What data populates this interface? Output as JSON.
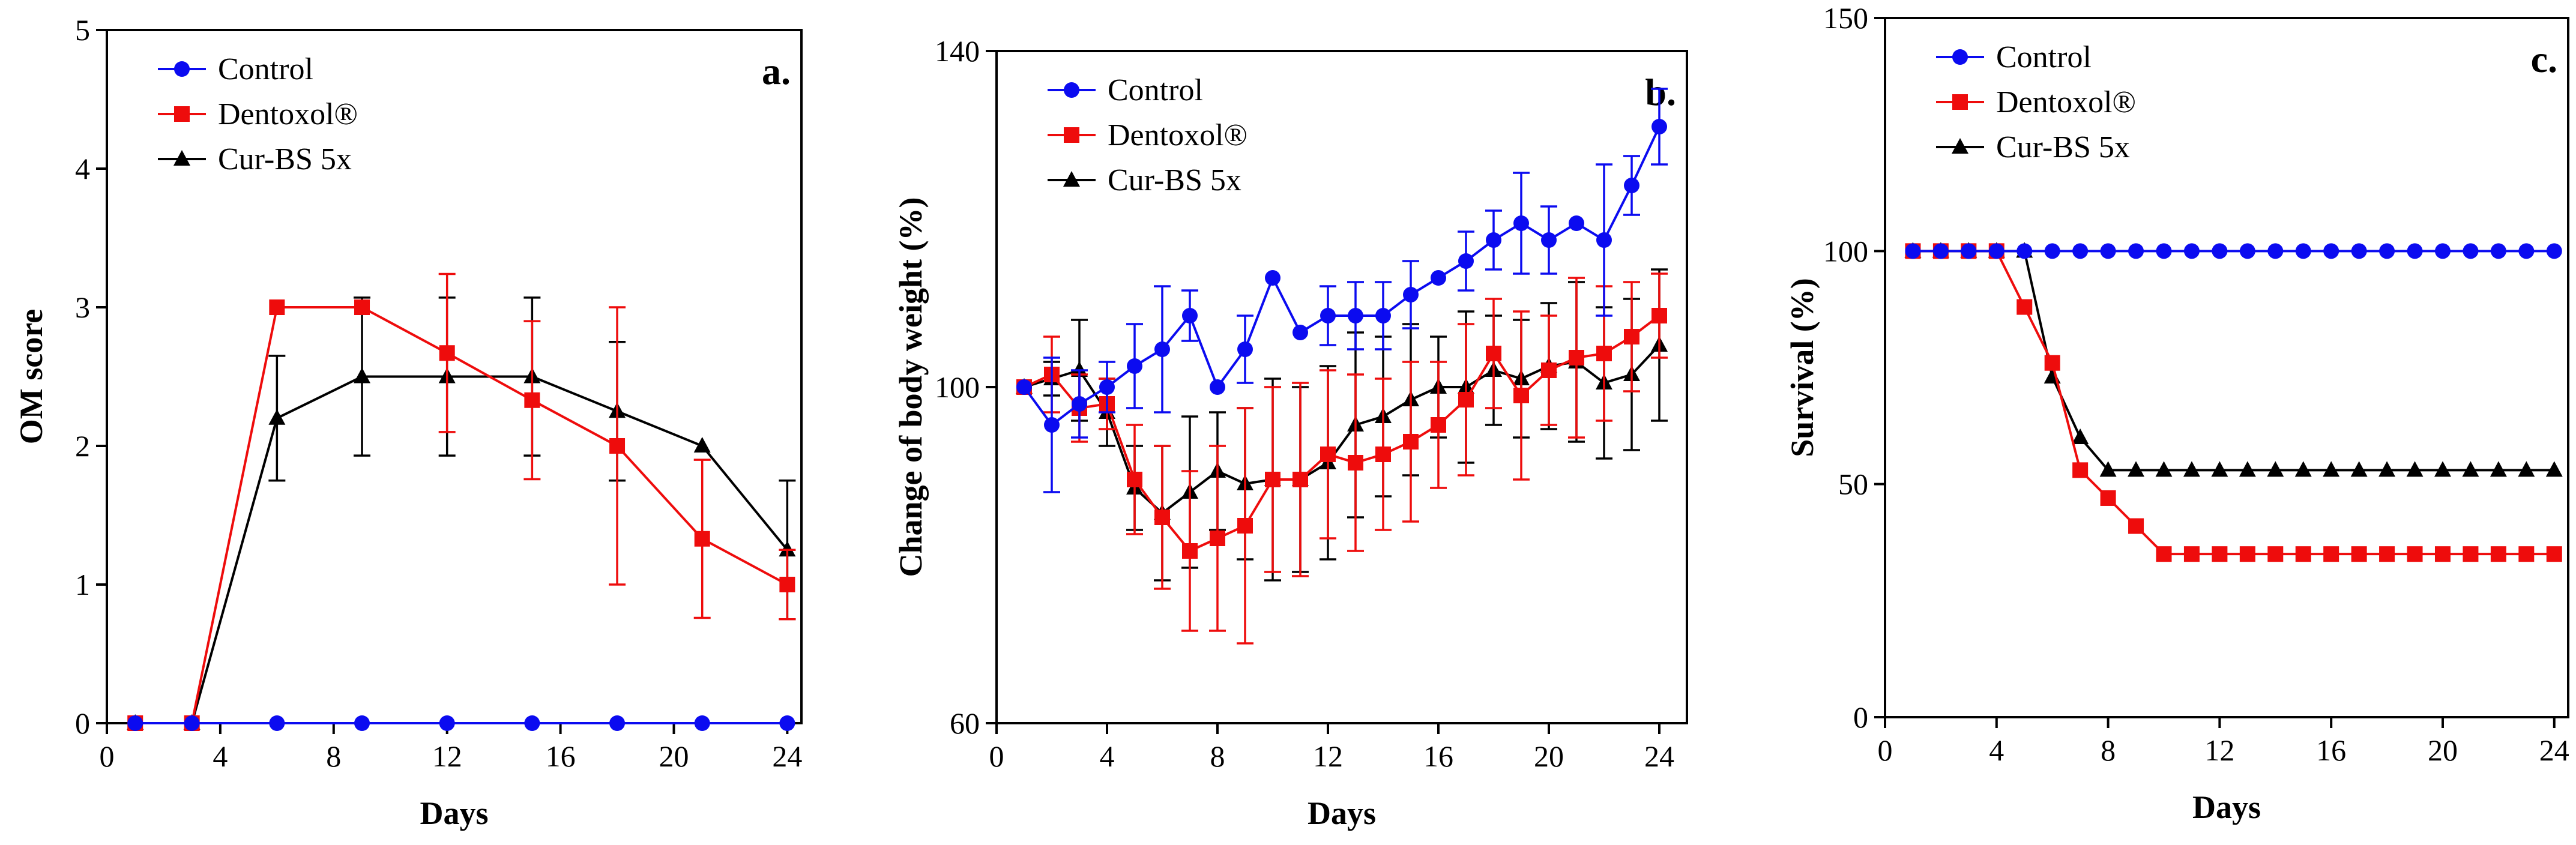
{
  "colors": {
    "control": "#0b0bf0",
    "dentoxol": "#ee0c0c",
    "curbs": "#000000",
    "axis": "#000000"
  },
  "chart_data": [
    {
      "panel_label": "a.",
      "type": "line",
      "xlabel": "Days",
      "ylabel": "OM score",
      "xlim": [
        0,
        24.5
      ],
      "ylim": [
        0,
        5
      ],
      "xticks": [
        0,
        4,
        8,
        12,
        16,
        20,
        24
      ],
      "xtick_labels": [
        "0",
        "4",
        "8",
        "12",
        "16",
        "20",
        "24"
      ],
      "yticks": [
        0,
        1,
        2,
        3,
        4,
        5
      ],
      "ytick_labels": [
        "0",
        "1",
        "2",
        "3",
        "4",
        "5"
      ],
      "legend_position": "top-left",
      "series": [
        {
          "name": "Control",
          "marker": "circle",
          "color_key": "control",
          "x": [
            1,
            3,
            6,
            9,
            12,
            15,
            18,
            21,
            24
          ],
          "y": [
            0,
            0,
            0,
            0,
            0,
            0,
            0,
            0,
            0
          ],
          "err": [
            0,
            0,
            0,
            0,
            0,
            0,
            0,
            0,
            0
          ]
        },
        {
          "name": "Dentoxol®",
          "marker": "square",
          "color_key": "dentoxol",
          "x": [
            1,
            3,
            6,
            9,
            12,
            15,
            18,
            21,
            24
          ],
          "y": [
            0,
            0,
            3.0,
            3.0,
            2.67,
            2.33,
            2.0,
            1.33,
            1.0
          ],
          "err": [
            0,
            0,
            0,
            0,
            0.57,
            0.57,
            1.0,
            0.57,
            0.25
          ]
        },
        {
          "name": "Cur-BS 5x",
          "marker": "triangle",
          "color_key": "curbs",
          "x": [
            1,
            3,
            6,
            9,
            12,
            15,
            18,
            21,
            24
          ],
          "y": [
            0,
            0,
            2.2,
            2.5,
            2.5,
            2.5,
            2.25,
            2.0,
            1.25
          ],
          "err": [
            0,
            0,
            0.45,
            0.57,
            0.57,
            0.57,
            0.5,
            0,
            0.5
          ]
        }
      ]
    },
    {
      "panel_label": "b.",
      "type": "line",
      "xlabel": "Days",
      "ylabel": "Change of body weight (%)",
      "xlim": [
        0,
        25
      ],
      "ylim": [
        60,
        140
      ],
      "xticks": [
        0,
        4,
        8,
        12,
        16,
        20,
        24
      ],
      "xtick_labels": [
        "0",
        "4",
        "8",
        "12",
        "16",
        "20",
        "24"
      ],
      "yticks": [
        60,
        100,
        140
      ],
      "ytick_labels": [
        "60",
        "100",
        "140"
      ],
      "legend_position": "top-left",
      "series": [
        {
          "name": "Control",
          "marker": "circle",
          "color_key": "control",
          "x": [
            1,
            2,
            3,
            4,
            5,
            6,
            7,
            8,
            9,
            10,
            11,
            12,
            13,
            14,
            15,
            16,
            17,
            18,
            19,
            20,
            21,
            22,
            23,
            24
          ],
          "y": [
            100,
            95.5,
            98,
            100,
            102.5,
            104.5,
            108.5,
            100,
            104.5,
            113,
            106.5,
            108.5,
            108.5,
            108.5,
            111,
            113,
            115,
            117.5,
            119.5,
            117.5,
            119.5,
            117.5,
            124,
            131
          ],
          "err": [
            0,
            8,
            4,
            3,
            5,
            7.5,
            3,
            0,
            4,
            0,
            0,
            3.5,
            4,
            4,
            4,
            0,
            3.5,
            3.5,
            6,
            4,
            0,
            9,
            3.5,
            4.5
          ]
        },
        {
          "name": "Dentoxol®",
          "marker": "square",
          "color_key": "dentoxol",
          "x": [
            1,
            2,
            3,
            4,
            5,
            6,
            7,
            8,
            9,
            10,
            11,
            12,
            13,
            14,
            15,
            16,
            17,
            18,
            19,
            20,
            21,
            22,
            23,
            24
          ],
          "y": [
            100,
            101.5,
            97.5,
            98,
            89,
            84.5,
            80.5,
            82,
            83.5,
            89,
            89,
            92,
            91,
            92,
            93.5,
            95.5,
            98.5,
            104,
            99,
            102,
            103.5,
            104,
            106,
            108.5
          ],
          "err": [
            0,
            4.5,
            4,
            3,
            6.5,
            8.5,
            9.5,
            11,
            14,
            11,
            11.5,
            10,
            10.5,
            9,
            9.5,
            7.5,
            9,
            6.5,
            10,
            6.5,
            9.5,
            8,
            6.5,
            5
          ]
        },
        {
          "name": "Cur-BS 5x",
          "marker": "triangle",
          "color_key": "curbs",
          "x": [
            1,
            2,
            3,
            4,
            5,
            6,
            7,
            8,
            9,
            10,
            11,
            12,
            13,
            14,
            15,
            16,
            17,
            18,
            19,
            20,
            21,
            22,
            23,
            24
          ],
          "y": [
            100,
            101,
            102,
            97,
            88,
            85,
            87.5,
            90,
            88.5,
            89,
            89,
            91,
            95.5,
            96.5,
            98.5,
            100,
            100,
            102,
            101,
            102.5,
            103,
            100.5,
            101.5,
            105
          ],
          "err": [
            0,
            2,
            6,
            4,
            5,
            8,
            9,
            7,
            9,
            12,
            11,
            11.5,
            11,
            9.5,
            9,
            6,
            9,
            6.5,
            7,
            7.5,
            9.5,
            9,
            9,
            9
          ]
        }
      ]
    },
    {
      "panel_label": "c.",
      "type": "line",
      "xlabel": "Days",
      "ylabel": "Survival (%)",
      "xlim": [
        0,
        24.5
      ],
      "ylim": [
        0,
        150
      ],
      "xticks": [
        0,
        4,
        8,
        12,
        16,
        20,
        24
      ],
      "xtick_labels": [
        "0",
        "4",
        "8",
        "12",
        "16",
        "20",
        "24"
      ],
      "yticks": [
        0,
        50,
        100,
        150
      ],
      "ytick_labels": [
        "0",
        "50",
        "100",
        "150"
      ],
      "legend_position": "top-left",
      "series": [
        {
          "name": "Control",
          "marker": "circle",
          "color_key": "control",
          "x": [
            1,
            2,
            3,
            4,
            5,
            6,
            7,
            8,
            9,
            10,
            11,
            12,
            13,
            14,
            15,
            16,
            17,
            18,
            19,
            20,
            21,
            22,
            23,
            24
          ],
          "y": [
            100,
            100,
            100,
            100,
            100,
            100,
            100,
            100,
            100,
            100,
            100,
            100,
            100,
            100,
            100,
            100,
            100,
            100,
            100,
            100,
            100,
            100,
            100,
            100
          ]
        },
        {
          "name": "Dentoxol®",
          "marker": "square",
          "color_key": "dentoxol",
          "x": [
            1,
            2,
            3,
            4,
            5,
            6,
            7,
            8,
            9,
            10,
            11,
            12,
            13,
            14,
            15,
            16,
            17,
            18,
            19,
            20,
            21,
            22,
            23,
            24
          ],
          "y": [
            100,
            100,
            100,
            100,
            88,
            76,
            53,
            47,
            41,
            35,
            35,
            35,
            35,
            35,
            35,
            35,
            35,
            35,
            35,
            35,
            35,
            35,
            35,
            35
          ]
        },
        {
          "name": "Cur-BS 5x",
          "marker": "triangle",
          "color_key": "curbs",
          "x": [
            1,
            2,
            3,
            4,
            5,
            6,
            7,
            8,
            9,
            10,
            11,
            12,
            13,
            14,
            15,
            16,
            17,
            18,
            19,
            20,
            21,
            22,
            23,
            24
          ],
          "y": [
            100,
            100,
            100,
            100,
            100,
            73,
            60,
            53,
            53,
            53,
            53,
            53,
            53,
            53,
            53,
            53,
            53,
            53,
            53,
            53,
            53,
            53,
            53,
            53
          ]
        }
      ]
    }
  ]
}
